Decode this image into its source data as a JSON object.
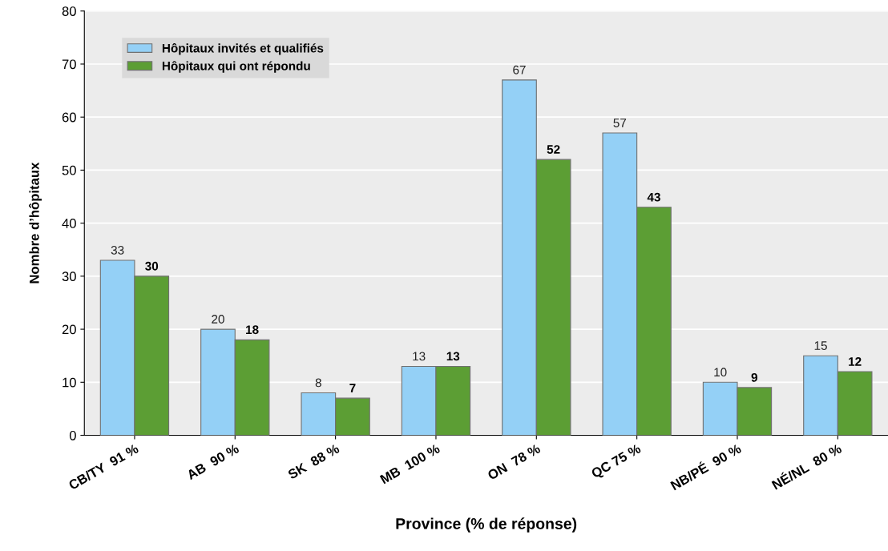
{
  "chart_data": {
    "type": "bar",
    "xlabel": "Province (% de réponse)",
    "ylabel": "Nombre d’hôpitaux",
    "categories": [
      "CB/TY  91 %",
      "AB  90 %",
      "SK  88 %",
      "MB  100 %",
      "ON  78 %",
      "QC 75 %",
      "NB/PÉ  90 %",
      "NÉ/NL  80 %"
    ],
    "series": [
      {
        "name": "Hôpitaux invités et qualifiés",
        "color": "#94d0f6",
        "values": [
          33,
          20,
          8,
          13,
          67,
          57,
          10,
          15
        ]
      },
      {
        "name": "Hôpitaux qui ont répondu",
        "color": "#5c9e34",
        "values": [
          30,
          18,
          7,
          13,
          52,
          43,
          9,
          12
        ]
      }
    ],
    "ylim": [
      0,
      80
    ],
    "yticks": [
      0,
      10,
      20,
      30,
      40,
      50,
      60,
      70,
      80
    ],
    "grid": "y",
    "legend": "top left",
    "data_labels": true
  }
}
